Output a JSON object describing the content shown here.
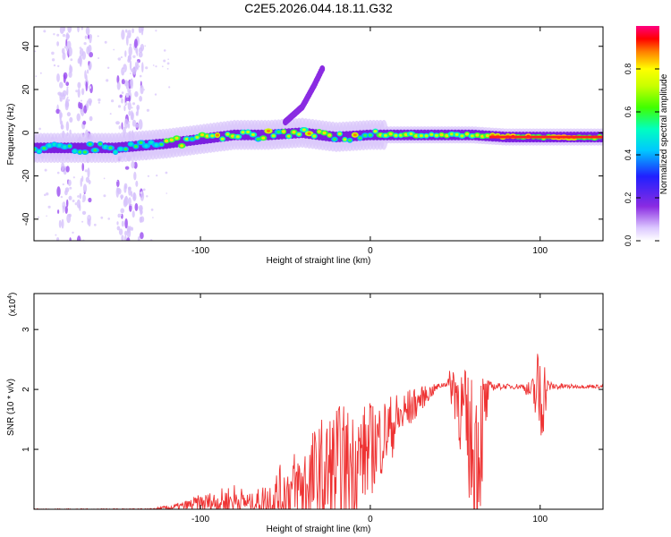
{
  "title": "C2E5.2026.044.18.11.G32",
  "chart_data": [
    {
      "type": "heatmap",
      "name": "spectrogram",
      "xlabel": "Height of straight line (km)",
      "ylabel": "Frequency (Hz)",
      "xlim": [
        -198,
        137
      ],
      "ylim": [
        -50,
        49
      ],
      "xticks": [
        -100,
        0,
        100
      ],
      "yticks": [
        -40,
        -20,
        0,
        20,
        40
      ],
      "colorbar": {
        "label": "Normalized spectral amplitude",
        "range": [
          0,
          1
        ],
        "ticks": [
          0.0,
          0.2,
          0.4,
          0.6,
          0.8
        ],
        "tick_labels": [
          "0.0",
          "0.2",
          "0.4",
          "0.6",
          "0.8"
        ]
      },
      "ridge": {
        "x": [
          -198,
          -150,
          -120,
          -100,
          -80,
          -60,
          -40,
          -20,
          0,
          20,
          40,
          60,
          80,
          100,
          137
        ],
        "freq": [
          -7,
          -7,
          -5,
          -3,
          -1,
          -1,
          0,
          -2,
          -1,
          -1,
          -1,
          -1,
          -2,
          -2,
          -2
        ]
      },
      "branch": {
        "x": [
          -50,
          -40,
          -33,
          -28
        ],
        "freq": [
          5,
          12,
          22,
          30
        ]
      }
    },
    {
      "type": "line",
      "name": "snr",
      "xlabel": "Height of straight line (km)",
      "ylabel": "SNR (10 * v/v)",
      "yscale_label": "(x10",
      "yscale_exp": "4",
      "yscale_tail": ")",
      "xlim": [
        -198,
        137
      ],
      "ylim": [
        0,
        3.6
      ],
      "xticks": [
        -100,
        0,
        100
      ],
      "yticks": [
        1,
        2,
        3
      ],
      "color": "#ee3333",
      "envelope": {
        "x": [
          -198,
          -130,
          -120,
          -110,
          -100,
          -90,
          -80,
          -70,
          -60,
          -50,
          -40,
          -30,
          -20,
          -10,
          0,
          10,
          20,
          30,
          40,
          45,
          50,
          55,
          60,
          63,
          67,
          70,
          80,
          90,
          95,
          100,
          105,
          120,
          137
        ],
        "baseline": [
          0.0,
          0.0,
          0.02,
          0.05,
          0.1,
          0.12,
          0.15,
          0.1,
          0.15,
          0.25,
          0.35,
          0.5,
          0.6,
          0.8,
          1.0,
          1.3,
          1.6,
          1.85,
          2.05,
          2.1,
          2.05,
          1.5,
          1.0,
          1.0,
          1.5,
          2.05,
          2.05,
          2.05,
          1.95,
          1.9,
          2.05,
          2.05,
          2.05
        ],
        "amplitude": [
          0.01,
          0.01,
          0.04,
          0.08,
          0.15,
          0.2,
          0.3,
          0.15,
          0.35,
          0.6,
          0.8,
          1.0,
          1.2,
          0.9,
          0.8,
          0.6,
          0.4,
          0.2,
          0.05,
          0.05,
          0.6,
          0.9,
          1.2,
          1.6,
          0.9,
          0.08,
          0.04,
          0.05,
          0.2,
          1.1,
          0.08,
          0.03,
          0.03
        ]
      }
    }
  ]
}
